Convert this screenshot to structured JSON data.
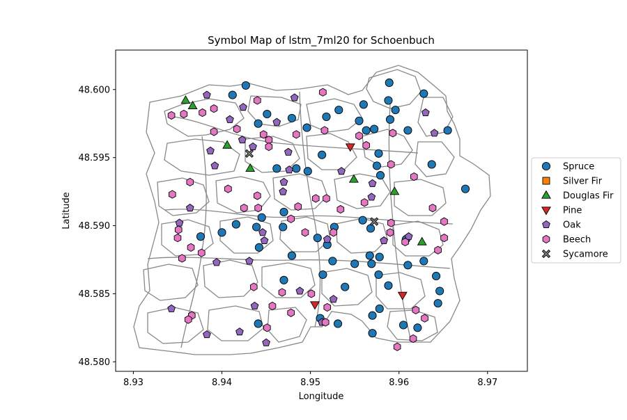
{
  "chart_data": {
    "type": "scatter",
    "title": "Symbol Map of lstm_7ml20 for Schoenbuch",
    "xlabel": "Longitude",
    "ylabel": "Latitude",
    "xlim": [
      8.928,
      8.9745
    ],
    "ylim": [
      48.5793,
      48.6029
    ],
    "xticks": [
      8.93,
      8.94,
      8.95,
      8.96,
      8.97
    ],
    "yticks": [
      48.58,
      48.585,
      48.59,
      48.595,
      48.6
    ],
    "xtick_labels": [
      "8.93",
      "8.94",
      "8.95",
      "8.96",
      "8.97"
    ],
    "ytick_labels": [
      "48.580",
      "48.585",
      "48.590",
      "48.595",
      "48.600"
    ],
    "grid": false,
    "legend_position": "right-outside",
    "series": [
      {
        "name": "Spruce",
        "marker": "circle",
        "color": "#1f77b4",
        "points": [
          [
            8.9412,
            48.5996
          ],
          [
            8.9427,
            48.6003
          ],
          [
            8.9589,
            48.6005
          ],
          [
            8.9628,
            48.5997
          ],
          [
            8.9441,
            48.5975
          ],
          [
            8.9451,
            48.5982
          ],
          [
            8.9479,
            48.5979
          ],
          [
            8.9496,
            48.5972
          ],
          [
            8.9518,
            48.598
          ],
          [
            8.9532,
            48.5985
          ],
          [
            8.956,
            48.5989
          ],
          [
            8.9555,
            48.5977
          ],
          [
            8.9563,
            48.597
          ],
          [
            8.9572,
            48.5971
          ],
          [
            8.9588,
            48.5992
          ],
          [
            8.9596,
            48.5985
          ],
          [
            8.959,
            48.5978
          ],
          [
            8.961,
            48.597
          ],
          [
            8.9655,
            48.597
          ],
          [
            8.9577,
            48.5953
          ],
          [
            8.9513,
            48.5952
          ],
          [
            8.9637,
            48.5945
          ],
          [
            8.9575,
            48.5944
          ],
          [
            8.9462,
            48.5942
          ],
          [
            8.9484,
            48.5942
          ],
          [
            8.9497,
            48.594
          ],
          [
            8.9579,
            48.5937
          ],
          [
            8.9675,
            48.5927
          ],
          [
            8.947,
            48.591
          ],
          [
            8.9445,
            48.5906
          ],
          [
            8.9416,
            48.5901
          ],
          [
            8.9439,
            48.5899
          ],
          [
            8.9469,
            48.5899
          ],
          [
            8.9527,
            48.5899
          ],
          [
            8.94,
            48.5895
          ],
          [
            8.9376,
            48.5892
          ],
          [
            8.9508,
            48.5891
          ],
          [
            8.9519,
            48.5886
          ],
          [
            8.9442,
            48.5884
          ],
          [
            8.9559,
            48.5904
          ],
          [
            8.9568,
            48.5898
          ],
          [
            8.9608,
            48.589
          ],
          [
            8.9479,
            48.5878
          ],
          [
            8.9567,
            48.5878
          ],
          [
            8.9578,
            48.5877
          ],
          [
            8.9569,
            48.5872
          ],
          [
            8.9525,
            48.5874
          ],
          [
            8.955,
            48.5872
          ],
          [
            8.961,
            48.5871
          ],
          [
            8.9628,
            48.5874
          ],
          [
            8.9514,
            48.5864
          ],
          [
            8.9577,
            48.5864
          ],
          [
            8.9642,
            48.5863
          ],
          [
            8.947,
            48.586
          ],
          [
            8.9539,
            48.5855
          ],
          [
            8.9588,
            48.5856
          ],
          [
            8.9646,
            48.5852
          ],
          [
            8.9644,
            48.5843
          ],
          [
            8.9578,
            48.5839
          ],
          [
            8.957,
            48.5834
          ],
          [
            8.9511,
            48.5832
          ],
          [
            8.9531,
            48.5828
          ],
          [
            8.9441,
            48.5828
          ],
          [
            8.9605,
            48.5827
          ],
          [
            8.9621,
            48.5825
          ],
          [
            8.957,
            48.5821
          ]
        ]
      },
      {
        "name": "Silver Fir",
        "marker": "square",
        "color": "#ff7f0e",
        "points": []
      },
      {
        "name": "Douglas Fir",
        "marker": "triangle-up",
        "color": "#2ca02c",
        "points": [
          [
            8.9359,
            48.5992
          ],
          [
            8.9367,
            48.5988
          ],
          [
            8.9406,
            48.5959
          ],
          [
            8.9432,
            48.5942
          ],
          [
            8.9549,
            48.5934
          ],
          [
            8.9595,
            48.5925
          ],
          [
            8.9626,
            48.5888
          ]
        ]
      },
      {
        "name": "Pine",
        "marker": "triangle-down",
        "color": "#d62728",
        "points": [
          [
            8.9545,
            48.5958
          ],
          [
            8.9505,
            48.5842
          ],
          [
            8.9604,
            48.5849
          ]
        ]
      },
      {
        "name": "Oak",
        "marker": "pentagon",
        "color": "#9467bd",
        "points": [
          [
            8.9383,
            48.5996
          ],
          [
            8.9482,
            48.5994
          ],
          [
            8.9424,
            48.5987
          ],
          [
            8.9409,
            48.5978
          ],
          [
            8.9462,
            48.5976
          ],
          [
            8.963,
            48.5983
          ],
          [
            8.9423,
            48.5963
          ],
          [
            8.9387,
            48.5955
          ],
          [
            8.9435,
            48.5958
          ],
          [
            8.9475,
            48.5954
          ],
          [
            8.964,
            48.5968
          ],
          [
            8.9392,
            48.5944
          ],
          [
            8.9476,
            48.5941
          ],
          [
            8.9535,
            48.594
          ],
          [
            8.947,
            48.5932
          ],
          [
            8.9469,
            48.5925
          ],
          [
            8.957,
            48.5931
          ],
          [
            8.9569,
            48.5921
          ],
          [
            8.9364,
            48.5913
          ],
          [
            8.9352,
            48.5902
          ],
          [
            8.9446,
            48.5895
          ],
          [
            8.9519,
            48.589
          ],
          [
            8.9448,
            48.5889
          ],
          [
            8.9583,
            48.5889
          ],
          [
            8.9611,
            48.5892
          ],
          [
            8.9394,
            48.5873
          ],
          [
            8.9431,
            48.5874
          ],
          [
            8.9488,
            48.5852
          ],
          [
            8.9437,
            48.5841
          ],
          [
            8.9526,
            48.5846
          ],
          [
            8.9343,
            48.5839
          ],
          [
            8.9513,
            48.5829
          ],
          [
            8.9383,
            48.582
          ],
          [
            8.942,
            48.5822
          ],
          [
            8.945,
            48.5814
          ]
        ]
      },
      {
        "name": "Beech",
        "marker": "hexagon",
        "color": "#e377c2",
        "points": [
          [
            8.9343,
            48.5981
          ],
          [
            8.9357,
            48.5982
          ],
          [
            8.9378,
            48.5983
          ],
          [
            8.9391,
            48.5986
          ],
          [
            8.944,
            48.5992
          ],
          [
            8.9514,
            48.5998
          ],
          [
            8.9391,
            48.5969
          ],
          [
            8.9417,
            48.5971
          ],
          [
            8.9447,
            48.5967
          ],
          [
            8.9453,
            48.5963
          ],
          [
            8.9453,
            48.5958
          ],
          [
            8.9484,
            48.5967
          ],
          [
            8.9516,
            48.597
          ],
          [
            8.9555,
            48.5966
          ],
          [
            8.9563,
            48.5959
          ],
          [
            8.9593,
            48.5968
          ],
          [
            8.9591,
            48.5945
          ],
          [
            8.9617,
            48.5936
          ],
          [
            8.9364,
            48.5932
          ],
          [
            8.9407,
            48.5927
          ],
          [
            8.944,
            48.5922
          ],
          [
            8.9344,
            48.5923
          ],
          [
            8.9506,
            48.592
          ],
          [
            8.9518,
            48.592
          ],
          [
            8.9561,
            48.5917
          ],
          [
            8.9425,
            48.5913
          ],
          [
            8.9441,
            48.5913
          ],
          [
            8.9486,
            48.5914
          ],
          [
            8.9534,
            48.5912
          ],
          [
            8.9638,
            48.5913
          ],
          [
            8.9478,
            48.5905
          ],
          [
            8.9591,
            48.5902
          ],
          [
            8.9651,
            48.5903
          ],
          [
            8.9351,
            48.5897
          ],
          [
            8.9494,
            48.5895
          ],
          [
            8.9526,
            48.5895
          ],
          [
            8.959,
            48.5895
          ],
          [
            8.935,
            48.5891
          ],
          [
            8.9607,
            48.5888
          ],
          [
            8.9651,
            48.5891
          ],
          [
            8.9365,
            48.5884
          ],
          [
            8.9377,
            48.588
          ],
          [
            8.9355,
            48.5876
          ],
          [
            8.9644,
            48.5882
          ],
          [
            8.9436,
            48.5855
          ],
          [
            8.9468,
            48.5851
          ],
          [
            8.9501,
            48.585
          ],
          [
            8.9457,
            48.5841
          ],
          [
            8.9519,
            48.584
          ],
          [
            8.9478,
            48.5836
          ],
          [
            8.9366,
            48.5834
          ],
          [
            8.9362,
            48.5831
          ],
          [
            8.9451,
            48.5825
          ],
          [
            8.9517,
            48.5829
          ],
          [
            8.9619,
            48.5838
          ],
          [
            8.9629,
            48.5832
          ],
          [
            8.9616,
            48.5817
          ],
          [
            8.9598,
            48.5811
          ]
        ]
      },
      {
        "name": "Sycamore",
        "marker": "x",
        "color": "#7f7f7f",
        "points": [
          [
            8.9431,
            48.5953
          ],
          [
            8.9572,
            48.5903
          ]
        ]
      }
    ]
  }
}
